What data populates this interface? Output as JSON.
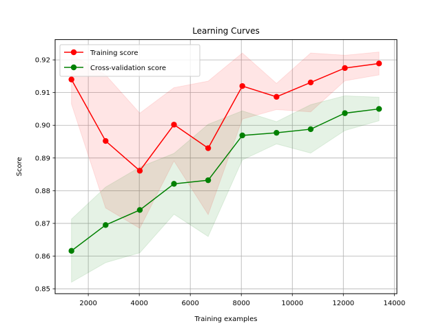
{
  "chart_data": {
    "type": "line",
    "title": "Learning Curves",
    "xlabel": "Training examples",
    "ylabel": "Score",
    "xlim": [
      700,
      14100
    ],
    "ylim": [
      0.8485,
      0.9262
    ],
    "xticks": [
      2000,
      4000,
      6000,
      8000,
      10000,
      12000,
      14000
    ],
    "yticks": [
      0.85,
      0.86,
      0.87,
      0.88,
      0.89,
      0.9,
      0.91,
      0.92
    ],
    "xtick_labels": [
      "2000",
      "4000",
      "6000",
      "8000",
      "10000",
      "12000",
      "14000"
    ],
    "ytick_labels": [
      "0.85",
      "0.86",
      "0.87",
      "0.88",
      "0.89",
      "0.90",
      "0.91",
      "0.92"
    ],
    "grid": true,
    "legend_position": "upper-left",
    "x": [
      1340,
      2680,
      4020,
      5360,
      6700,
      8040,
      9380,
      10720,
      12060,
      13400
    ],
    "series": [
      {
        "name": "Training score",
        "color": "#ff0000",
        "band_color": "#ff0000",
        "values": [
          0.914,
          0.8952,
          0.8861,
          0.9002,
          0.893,
          0.912,
          0.9087,
          0.9131,
          0.9175,
          0.9189
        ],
        "band_upper": [
          0.9216,
          0.9154,
          0.9037,
          0.9115,
          0.9135,
          0.9221,
          0.9128,
          0.9221,
          0.9214,
          0.9224
        ],
        "band_lower": [
          0.9065,
          0.8747,
          0.8685,
          0.8891,
          0.8727,
          0.9019,
          0.9048,
          0.9041,
          0.9136,
          0.9154
        ]
      },
      {
        "name": "Cross-validation score",
        "color": "#008000",
        "band_color": "#008000",
        "values": [
          0.8616,
          0.8695,
          0.8741,
          0.8821,
          0.8832,
          0.8969,
          0.8977,
          0.8988,
          0.9037,
          0.905
        ],
        "band_upper": [
          0.8713,
          0.8811,
          0.8872,
          0.8914,
          0.9003,
          0.9044,
          0.9011,
          0.9063,
          0.909,
          0.9086
        ],
        "band_lower": [
          0.852,
          0.858,
          0.861,
          0.8728,
          0.866,
          0.8894,
          0.8943,
          0.8915,
          0.8984,
          0.9014
        ]
      }
    ]
  }
}
